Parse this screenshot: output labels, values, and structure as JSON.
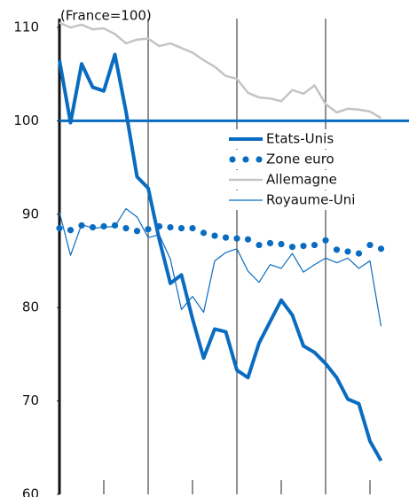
{
  "chart_data": {
    "type": "line",
    "title": "(France=100)",
    "categories": [
      null,
      null,
      null,
      null,
      null,
      null,
      null,
      null,
      null,
      null,
      null,
      null,
      null,
      null,
      null,
      null,
      null,
      null,
      null,
      null,
      null,
      null,
      null,
      null,
      null,
      null,
      null,
      null,
      null,
      null
    ],
    "series": [
      {
        "name": "Etats-Unis",
        "color": "#0a6cc0",
        "style": "thick",
        "values": [
          106.5,
          99.8,
          106.1,
          103.6,
          103.2,
          107.1,
          101.0,
          94.0,
          92.8,
          87.3,
          82.6,
          83.5,
          78.8,
          74.6,
          77.7,
          77.4,
          73.3,
          72.5,
          76.2,
          78.5,
          80.8,
          79.2,
          75.9,
          75.2,
          74.0,
          72.5,
          70.2,
          69.7,
          65.7,
          63.6
        ]
      },
      {
        "name": "Zone euro",
        "color": "#0a6cc0",
        "style": "dots",
        "values": [
          88.5,
          88.3,
          88.8,
          88.6,
          88.7,
          88.8,
          88.5,
          88.2,
          88.4,
          88.7,
          88.6,
          88.5,
          88.5,
          88.0,
          87.7,
          87.5,
          87.4,
          87.3,
          86.7,
          86.9,
          86.8,
          86.5,
          86.6,
          86.7,
          87.2,
          86.2,
          86.0,
          85.8,
          86.7,
          86.3
        ]
      },
      {
        "name": "Allemagne",
        "color": "#c4c4c4",
        "style": "medium",
        "values": [
          110.5,
          110.0,
          110.3,
          109.8,
          109.9,
          109.3,
          108.3,
          108.7,
          108.8,
          108.0,
          108.3,
          107.8,
          107.3,
          106.5,
          105.8,
          104.8,
          104.5,
          103.0,
          102.5,
          102.4,
          102.1,
          103.3,
          102.9,
          103.8,
          101.8,
          100.9,
          101.3,
          101.2,
          101.0,
          100.3
        ]
      },
      {
        "name": "Royaume-Uni",
        "color": "#0a6cc0",
        "style": "thin",
        "values": [
          90.2,
          85.6,
          88.9,
          88.5,
          88.6,
          88.7,
          90.6,
          89.7,
          87.5,
          87.8,
          85.2,
          79.8,
          81.2,
          79.5,
          85.0,
          85.9,
          86.3,
          83.9,
          82.7,
          84.6,
          84.2,
          85.8,
          83.8,
          84.6,
          85.3,
          84.8,
          85.3,
          84.2,
          85.0,
          78.0
        ]
      }
    ],
    "reference_line": 100,
    "ylim": [
      60,
      110
    ],
    "yticks": [
      60,
      70,
      80,
      90,
      100,
      110
    ]
  }
}
